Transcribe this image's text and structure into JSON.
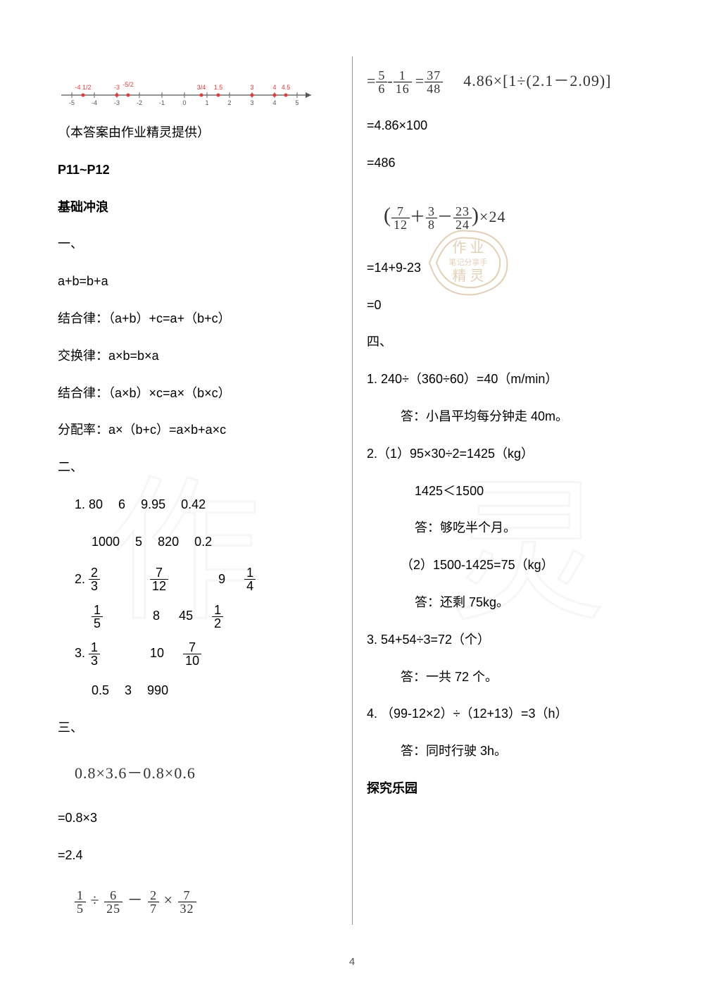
{
  "numberline": {
    "ticks": [
      -5,
      -4,
      -3,
      -2,
      -1,
      0,
      1,
      2,
      3,
      4,
      5
    ],
    "red_points": [
      {
        "x": -4.5,
        "label": "-4 1/2"
      },
      {
        "x": -3,
        "label": "-3"
      },
      {
        "x": -2.5,
        "label": "-5/2",
        "frac": true
      },
      {
        "x": 0.75,
        "label": "3/4"
      },
      {
        "x": 1.5,
        "label": "1.5"
      },
      {
        "x": 3,
        "label": "3"
      },
      {
        "x": 4,
        "label": "4"
      },
      {
        "x": 4.5,
        "label": "4.5"
      }
    ]
  },
  "left": {
    "caption": "（本答案由作业精灵提供）",
    "page_range": "P11~P12",
    "section_base": "基础冲浪",
    "h_one": "一、",
    "laws": {
      "commut_add": "a+b=b+a",
      "assoc_add_label": "结合律：（a+b）+c=a+（b+c）",
      "commut_mul_label": "交换律：a×b=b×a",
      "assoc_mul_label": "结合律：（a×b）×c=a×（b×c）",
      "distrib_label": "分配率：a×（b+c）=a×b+a×c"
    },
    "h_two": "二、",
    "rows": {
      "r1a": "1. 80    6    9.95    0.42",
      "r1b": "   1000    5    820    0.2",
      "r2_vals": [
        "2/3",
        "7/12",
        "9",
        "1/4"
      ],
      "r2b_vals": [
        "1/5",
        "8",
        "45",
        "1/2"
      ],
      "r3_vals": [
        "1/3",
        "10",
        "7/10"
      ],
      "r3b": "   0.5    3    990"
    },
    "h_three": "三、",
    "expr1": "0.8×3.6－0.8×0.6",
    "expr1_s1": "=0.8×3",
    "expr1_s2": "=2.4",
    "expr2_parts": {
      "a": "1/5",
      "b": "6/25",
      "c": "2/7",
      "d": "7/32"
    }
  },
  "right": {
    "expr2_s1_parts": {
      "a": "5/6",
      "b": "1/16"
    },
    "expr2_s2": "37/48",
    "expr3": "4.86×[1÷(2.1－2.09)]",
    "expr3_s1": "=4.86×100",
    "expr3_s2": "=486",
    "expr4_parts": {
      "a": "7/12",
      "b": "3/8",
      "c": "23/24",
      "d": "24"
    },
    "expr4_s1": "=14+9-23",
    "expr4_s2": "=0",
    "h_four": "四、",
    "q1": "1. 240÷（360÷60）=40（m/min）",
    "a1": "答：小昌平均每分钟走 40m。",
    "q2a": "2.（1）95×30÷2=1425（kg）",
    "q2cmp": "1425＜1500",
    "a2a": "答：够吃半个月。",
    "q2b": "（2）1500-1425=75（kg）",
    "a2b": "答：还剩 75kg。",
    "q3": "3. 54+54÷3=72（个）",
    "a3": "答：一共 72 个。",
    "q4": "4. （99-12×2）÷（12+13）=3（h）",
    "a4": "答：同时行驶 3h。",
    "section_explore": "探究乐园"
  },
  "page_number": "4",
  "watermark": {
    "char_left": "作",
    "char_right": "业",
    "stamp_lines": [
      "作 业",
      "笔记分享手",
      "精 灵"
    ]
  }
}
